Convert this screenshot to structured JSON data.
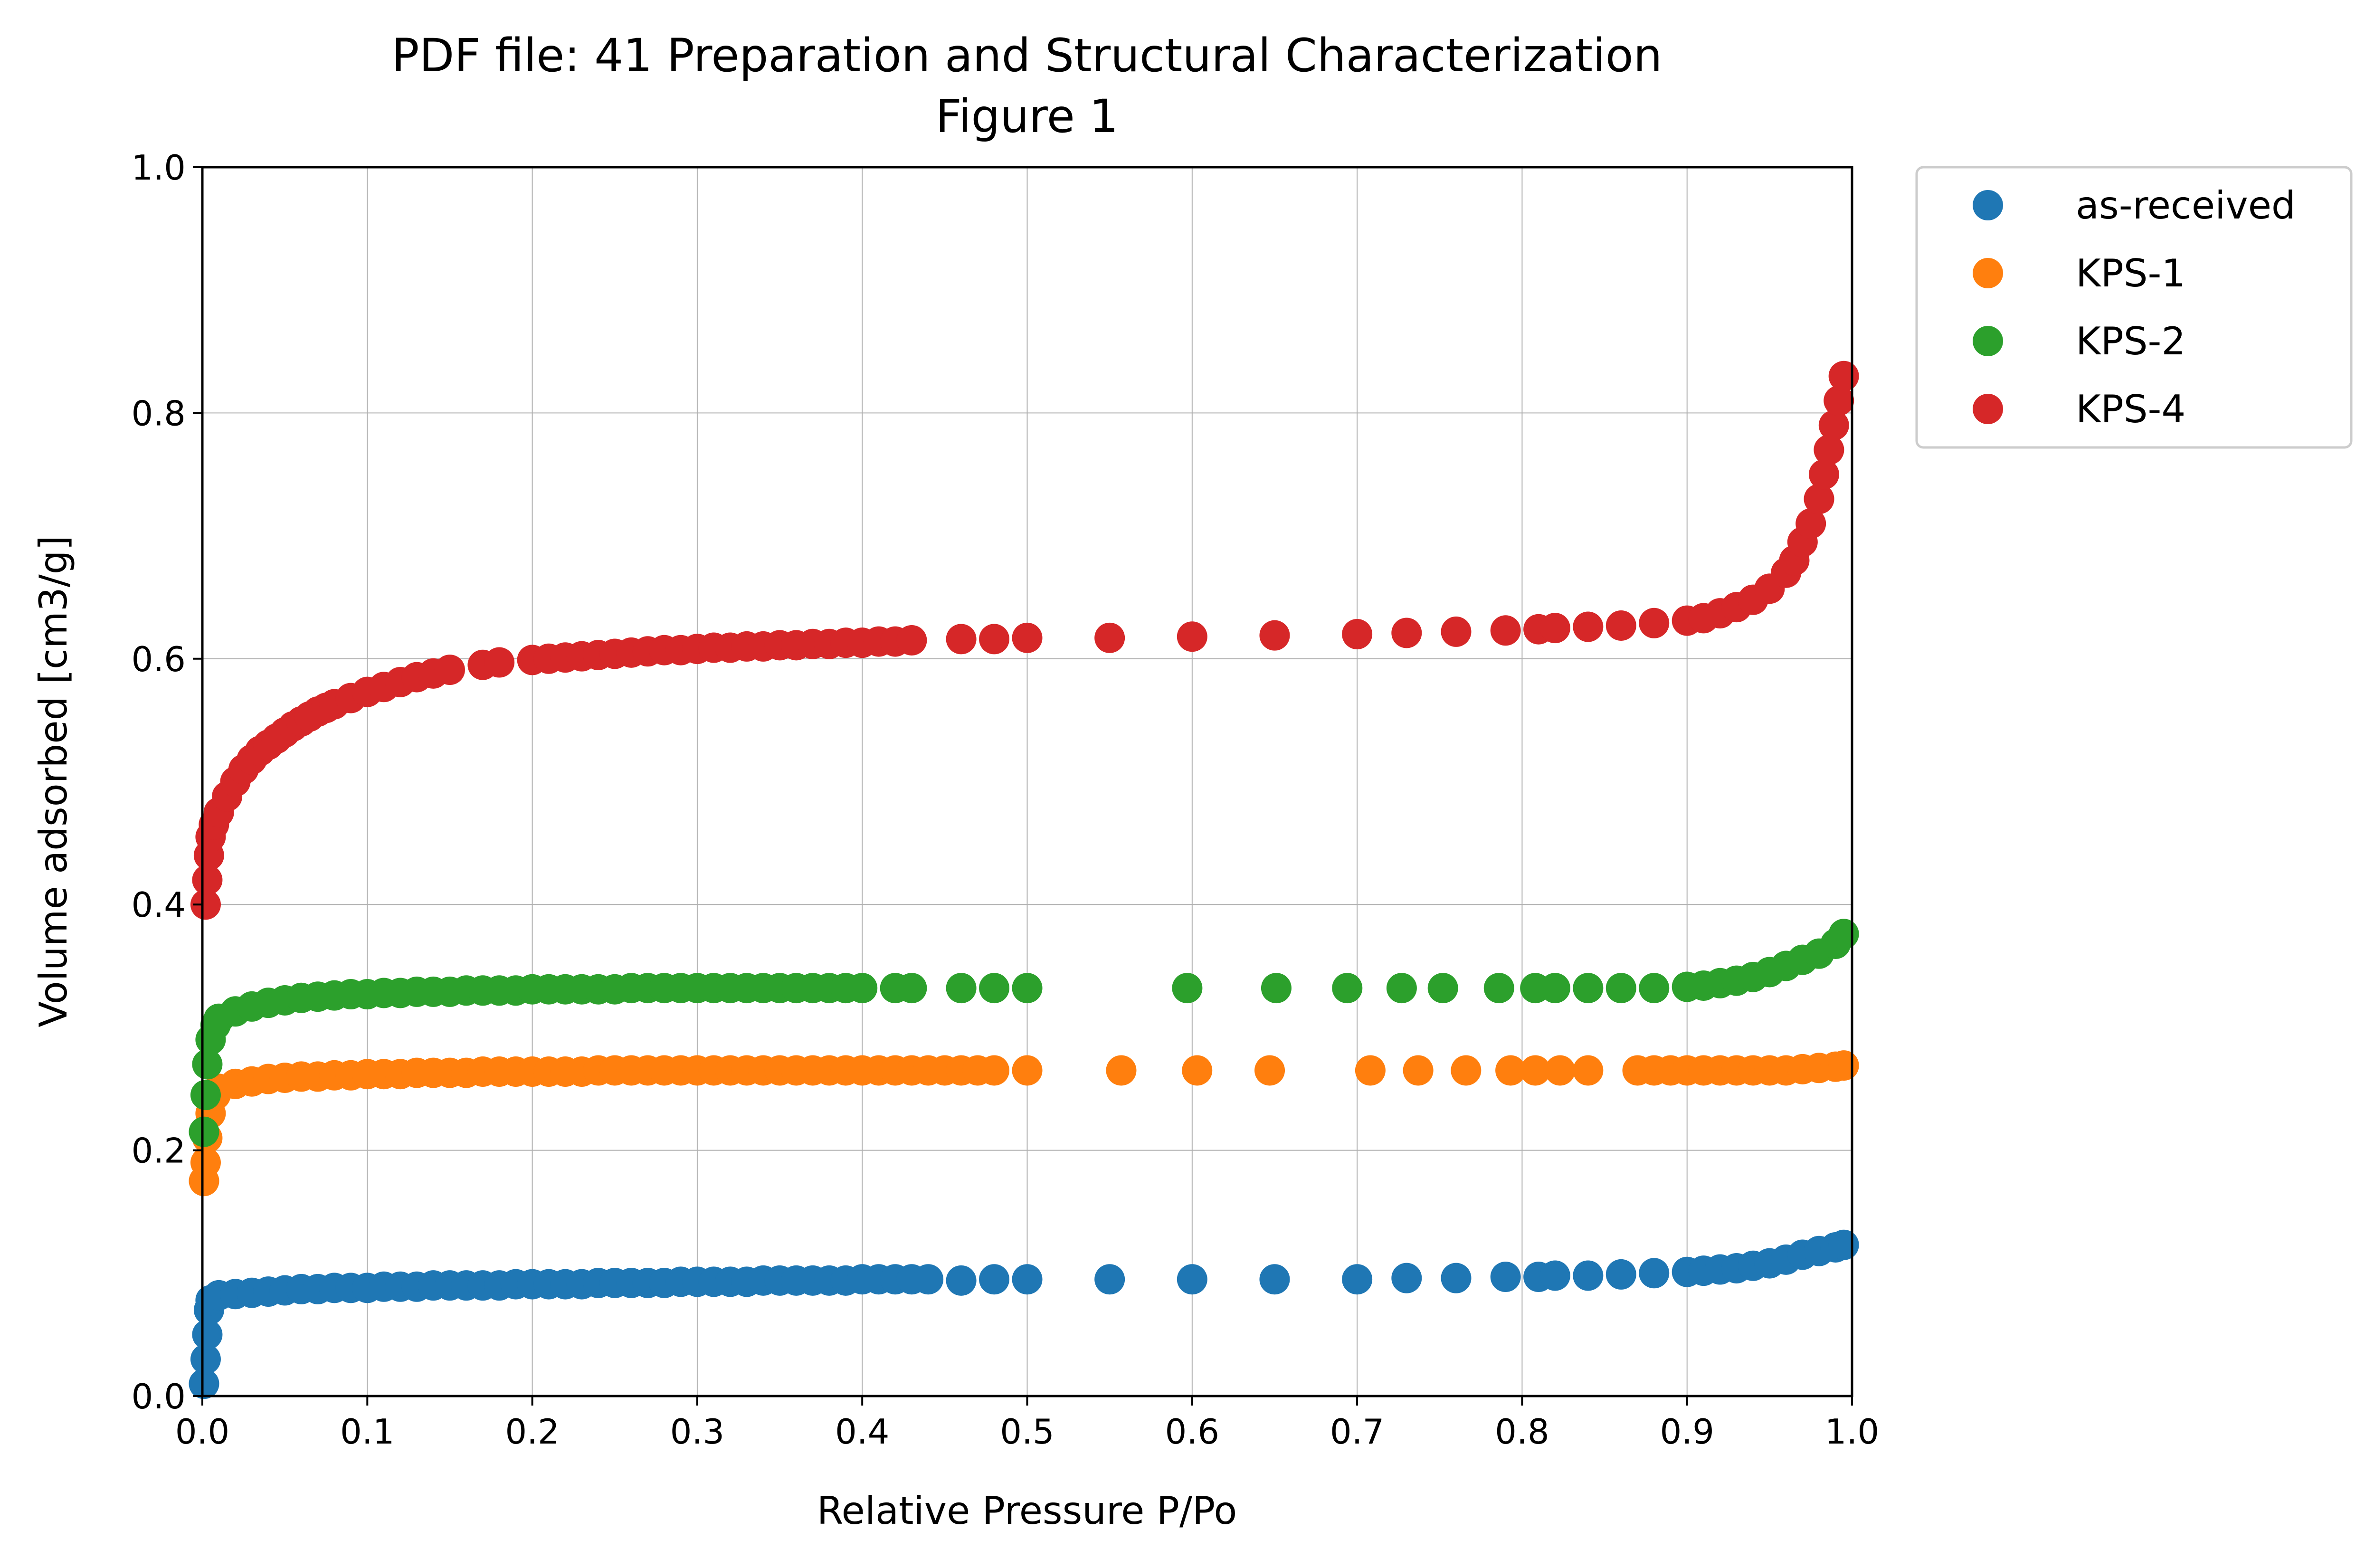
{
  "chart_data": {
    "type": "scatter",
    "title": "PDF file: 41 Preparation and Structural Characterization",
    "subtitle": "Figure 1",
    "xlabel": "Relative Pressure P/Po",
    "ylabel": "Volume adsorbed [cm3/g]",
    "xlim": [
      0.0,
      1.0
    ],
    "ylim": [
      0.0,
      1.0
    ],
    "xticks": [
      "0.0",
      "0.1",
      "0.2",
      "0.3",
      "0.4",
      "0.5",
      "0.6",
      "0.7",
      "0.8",
      "0.9",
      "1.0"
    ],
    "yticks": [
      "0.0",
      "0.2",
      "0.4",
      "0.6",
      "0.8",
      "1.0"
    ],
    "grid": true,
    "legend_position": "outside-top-right",
    "series": [
      {
        "name": "as-received",
        "color": "#1f77b4",
        "points": [
          [
            0.001,
            0.01
          ],
          [
            0.002,
            0.03
          ],
          [
            0.003,
            0.05
          ],
          [
            0.004,
            0.07
          ],
          [
            0.005,
            0.078
          ],
          [
            0.01,
            0.082
          ],
          [
            0.02,
            0.083
          ],
          [
            0.03,
            0.084
          ],
          [
            0.04,
            0.085
          ],
          [
            0.05,
            0.086
          ],
          [
            0.06,
            0.087
          ],
          [
            0.07,
            0.087
          ],
          [
            0.08,
            0.088
          ],
          [
            0.09,
            0.088
          ],
          [
            0.1,
            0.088
          ],
          [
            0.11,
            0.089
          ],
          [
            0.12,
            0.089
          ],
          [
            0.13,
            0.089
          ],
          [
            0.14,
            0.09
          ],
          [
            0.15,
            0.09
          ],
          [
            0.16,
            0.09
          ],
          [
            0.17,
            0.09
          ],
          [
            0.18,
            0.09
          ],
          [
            0.19,
            0.091
          ],
          [
            0.2,
            0.091
          ],
          [
            0.21,
            0.091
          ],
          [
            0.22,
            0.091
          ],
          [
            0.23,
            0.091
          ],
          [
            0.24,
            0.092
          ],
          [
            0.25,
            0.092
          ],
          [
            0.26,
            0.092
          ],
          [
            0.27,
            0.092
          ],
          [
            0.28,
            0.092
          ],
          [
            0.29,
            0.093
          ],
          [
            0.3,
            0.093
          ],
          [
            0.31,
            0.093
          ],
          [
            0.32,
            0.093
          ],
          [
            0.33,
            0.093
          ],
          [
            0.34,
            0.094
          ],
          [
            0.35,
            0.094
          ],
          [
            0.36,
            0.094
          ],
          [
            0.37,
            0.094
          ],
          [
            0.38,
            0.094
          ],
          [
            0.39,
            0.094
          ],
          [
            0.4,
            0.095
          ],
          [
            0.41,
            0.095
          ],
          [
            0.42,
            0.095
          ],
          [
            0.43,
            0.095
          ],
          [
            0.44,
            0.095
          ],
          [
            0.46,
            0.094
          ],
          [
            0.48,
            0.095
          ],
          [
            0.5,
            0.095
          ],
          [
            0.55,
            0.095
          ],
          [
            0.6,
            0.095
          ],
          [
            0.65,
            0.095
          ],
          [
            0.7,
            0.095
          ],
          [
            0.73,
            0.096
          ],
          [
            0.76,
            0.096
          ],
          [
            0.79,
            0.097
          ],
          [
            0.81,
            0.097
          ],
          [
            0.82,
            0.098
          ],
          [
            0.84,
            0.098
          ],
          [
            0.86,
            0.099
          ],
          [
            0.88,
            0.1
          ],
          [
            0.9,
            0.101
          ],
          [
            0.91,
            0.102
          ],
          [
            0.92,
            0.103
          ],
          [
            0.93,
            0.104
          ],
          [
            0.94,
            0.106
          ],
          [
            0.95,
            0.108
          ],
          [
            0.96,
            0.111
          ],
          [
            0.97,
            0.115
          ],
          [
            0.98,
            0.118
          ],
          [
            0.99,
            0.121
          ],
          [
            0.995,
            0.123
          ]
        ]
      },
      {
        "name": "KPS-1",
        "color": "#ff7f0e",
        "points": [
          [
            0.001,
            0.175
          ],
          [
            0.002,
            0.19
          ],
          [
            0.003,
            0.21
          ],
          [
            0.005,
            0.23
          ],
          [
            0.008,
            0.245
          ],
          [
            0.01,
            0.25
          ],
          [
            0.02,
            0.254
          ],
          [
            0.03,
            0.256
          ],
          [
            0.04,
            0.258
          ],
          [
            0.05,
            0.259
          ],
          [
            0.06,
            0.26
          ],
          [
            0.07,
            0.26
          ],
          [
            0.08,
            0.261
          ],
          [
            0.09,
            0.261
          ],
          [
            0.1,
            0.262
          ],
          [
            0.11,
            0.262
          ],
          [
            0.12,
            0.262
          ],
          [
            0.13,
            0.263
          ],
          [
            0.14,
            0.263
          ],
          [
            0.15,
            0.263
          ],
          [
            0.16,
            0.263
          ],
          [
            0.17,
            0.264
          ],
          [
            0.18,
            0.264
          ],
          [
            0.19,
            0.264
          ],
          [
            0.2,
            0.264
          ],
          [
            0.21,
            0.264
          ],
          [
            0.22,
            0.264
          ],
          [
            0.23,
            0.264
          ],
          [
            0.24,
            0.265
          ],
          [
            0.25,
            0.265
          ],
          [
            0.26,
            0.265
          ],
          [
            0.27,
            0.265
          ],
          [
            0.28,
            0.265
          ],
          [
            0.29,
            0.265
          ],
          [
            0.3,
            0.265
          ],
          [
            0.31,
            0.265
          ],
          [
            0.32,
            0.265
          ],
          [
            0.33,
            0.265
          ],
          [
            0.34,
            0.265
          ],
          [
            0.35,
            0.265
          ],
          [
            0.36,
            0.265
          ],
          [
            0.37,
            0.265
          ],
          [
            0.38,
            0.265
          ],
          [
            0.39,
            0.265
          ],
          [
            0.4,
            0.265
          ],
          [
            0.41,
            0.265
          ],
          [
            0.42,
            0.265
          ],
          [
            0.43,
            0.265
          ],
          [
            0.44,
            0.265
          ],
          [
            0.45,
            0.265
          ],
          [
            0.46,
            0.265
          ],
          [
            0.47,
            0.265
          ],
          [
            0.48,
            0.265
          ],
          [
            0.5,
            0.265
          ],
          [
            0.557,
            0.265
          ],
          [
            0.603,
            0.265
          ],
          [
            0.647,
            0.265
          ],
          [
            0.708,
            0.265
          ],
          [
            0.737,
            0.265
          ],
          [
            0.766,
            0.265
          ],
          [
            0.793,
            0.265
          ],
          [
            0.808,
            0.265
          ],
          [
            0.823,
            0.265
          ],
          [
            0.84,
            0.265
          ],
          [
            0.87,
            0.265
          ],
          [
            0.88,
            0.265
          ],
          [
            0.89,
            0.265
          ],
          [
            0.9,
            0.265
          ],
          [
            0.91,
            0.265
          ],
          [
            0.92,
            0.265
          ],
          [
            0.93,
            0.265
          ],
          [
            0.94,
            0.265
          ],
          [
            0.95,
            0.265
          ],
          [
            0.96,
            0.265
          ],
          [
            0.97,
            0.266
          ],
          [
            0.98,
            0.267
          ],
          [
            0.99,
            0.268
          ],
          [
            0.995,
            0.269
          ]
        ]
      },
      {
        "name": "KPS-2",
        "color": "#2ca02c",
        "points": [
          [
            0.001,
            0.215
          ],
          [
            0.002,
            0.245
          ],
          [
            0.003,
            0.27
          ],
          [
            0.005,
            0.29
          ],
          [
            0.008,
            0.302
          ],
          [
            0.01,
            0.307
          ],
          [
            0.02,
            0.313
          ],
          [
            0.03,
            0.317
          ],
          [
            0.04,
            0.32
          ],
          [
            0.05,
            0.322
          ],
          [
            0.06,
            0.324
          ],
          [
            0.07,
            0.325
          ],
          [
            0.08,
            0.326
          ],
          [
            0.09,
            0.327
          ],
          [
            0.1,
            0.327
          ],
          [
            0.11,
            0.328
          ],
          [
            0.12,
            0.328
          ],
          [
            0.13,
            0.329
          ],
          [
            0.14,
            0.329
          ],
          [
            0.15,
            0.329
          ],
          [
            0.16,
            0.33
          ],
          [
            0.17,
            0.33
          ],
          [
            0.18,
            0.33
          ],
          [
            0.19,
            0.33
          ],
          [
            0.2,
            0.331
          ],
          [
            0.21,
            0.331
          ],
          [
            0.22,
            0.331
          ],
          [
            0.23,
            0.331
          ],
          [
            0.24,
            0.331
          ],
          [
            0.25,
            0.331
          ],
          [
            0.26,
            0.332
          ],
          [
            0.27,
            0.332
          ],
          [
            0.28,
            0.332
          ],
          [
            0.29,
            0.332
          ],
          [
            0.3,
            0.332
          ],
          [
            0.31,
            0.332
          ],
          [
            0.32,
            0.332
          ],
          [
            0.33,
            0.332
          ],
          [
            0.34,
            0.332
          ],
          [
            0.35,
            0.332
          ],
          [
            0.36,
            0.332
          ],
          [
            0.37,
            0.332
          ],
          [
            0.38,
            0.332
          ],
          [
            0.39,
            0.332
          ],
          [
            0.4,
            0.332
          ],
          [
            0.42,
            0.332
          ],
          [
            0.43,
            0.332
          ],
          [
            0.46,
            0.332
          ],
          [
            0.48,
            0.332
          ],
          [
            0.5,
            0.332
          ],
          [
            0.597,
            0.332
          ],
          [
            0.651,
            0.332
          ],
          [
            0.694,
            0.332
          ],
          [
            0.727,
            0.332
          ],
          [
            0.752,
            0.332
          ],
          [
            0.786,
            0.332
          ],
          [
            0.808,
            0.332
          ],
          [
            0.82,
            0.332
          ],
          [
            0.84,
            0.332
          ],
          [
            0.86,
            0.332
          ],
          [
            0.88,
            0.332
          ],
          [
            0.9,
            0.333
          ],
          [
            0.91,
            0.334
          ],
          [
            0.92,
            0.336
          ],
          [
            0.93,
            0.338
          ],
          [
            0.94,
            0.341
          ],
          [
            0.95,
            0.345
          ],
          [
            0.96,
            0.35
          ],
          [
            0.97,
            0.355
          ],
          [
            0.98,
            0.36
          ],
          [
            0.99,
            0.368
          ],
          [
            0.995,
            0.376
          ]
        ]
      },
      {
        "name": "KPS-4",
        "color": "#d62728",
        "points": [
          [
            0.002,
            0.4
          ],
          [
            0.003,
            0.42
          ],
          [
            0.004,
            0.44
          ],
          [
            0.005,
            0.455
          ],
          [
            0.007,
            0.465
          ],
          [
            0.01,
            0.475
          ],
          [
            0.015,
            0.488
          ],
          [
            0.02,
            0.5
          ],
          [
            0.025,
            0.51
          ],
          [
            0.03,
            0.518
          ],
          [
            0.035,
            0.525
          ],
          [
            0.04,
            0.53
          ],
          [
            0.045,
            0.535
          ],
          [
            0.05,
            0.54
          ],
          [
            0.055,
            0.545
          ],
          [
            0.06,
            0.549
          ],
          [
            0.065,
            0.553
          ],
          [
            0.07,
            0.557
          ],
          [
            0.075,
            0.56
          ],
          [
            0.08,
            0.563
          ],
          [
            0.09,
            0.568
          ],
          [
            0.1,
            0.573
          ],
          [
            0.11,
            0.577
          ],
          [
            0.12,
            0.581
          ],
          [
            0.13,
            0.585
          ],
          [
            0.14,
            0.588
          ],
          [
            0.15,
            0.591
          ],
          [
            0.17,
            0.595
          ],
          [
            0.18,
            0.597
          ],
          [
            0.2,
            0.599
          ],
          [
            0.21,
            0.6
          ],
          [
            0.22,
            0.601
          ],
          [
            0.23,
            0.602
          ],
          [
            0.24,
            0.603
          ],
          [
            0.25,
            0.604
          ],
          [
            0.26,
            0.605
          ],
          [
            0.27,
            0.606
          ],
          [
            0.28,
            0.607
          ],
          [
            0.29,
            0.607
          ],
          [
            0.3,
            0.608
          ],
          [
            0.31,
            0.609
          ],
          [
            0.32,
            0.609
          ],
          [
            0.33,
            0.61
          ],
          [
            0.34,
            0.61
          ],
          [
            0.35,
            0.611
          ],
          [
            0.36,
            0.611
          ],
          [
            0.37,
            0.612
          ],
          [
            0.38,
            0.612
          ],
          [
            0.39,
            0.613
          ],
          [
            0.4,
            0.613
          ],
          [
            0.41,
            0.614
          ],
          [
            0.42,
            0.614
          ],
          [
            0.43,
            0.615
          ],
          [
            0.46,
            0.616
          ],
          [
            0.48,
            0.616
          ],
          [
            0.5,
            0.617
          ],
          [
            0.55,
            0.617
          ],
          [
            0.6,
            0.618
          ],
          [
            0.65,
            0.619
          ],
          [
            0.7,
            0.62
          ],
          [
            0.73,
            0.621
          ],
          [
            0.76,
            0.622
          ],
          [
            0.79,
            0.623
          ],
          [
            0.81,
            0.624
          ],
          [
            0.82,
            0.625
          ],
          [
            0.84,
            0.626
          ],
          [
            0.86,
            0.627
          ],
          [
            0.88,
            0.629
          ],
          [
            0.9,
            0.631
          ],
          [
            0.91,
            0.633
          ],
          [
            0.92,
            0.637
          ],
          [
            0.93,
            0.642
          ],
          [
            0.94,
            0.648
          ],
          [
            0.95,
            0.657
          ],
          [
            0.96,
            0.67
          ],
          [
            0.965,
            0.68
          ],
          [
            0.97,
            0.695
          ],
          [
            0.975,
            0.71
          ],
          [
            0.98,
            0.73
          ],
          [
            0.983,
            0.75
          ],
          [
            0.986,
            0.77
          ],
          [
            0.989,
            0.79
          ],
          [
            0.992,
            0.81
          ],
          [
            0.995,
            0.83
          ]
        ]
      }
    ]
  }
}
